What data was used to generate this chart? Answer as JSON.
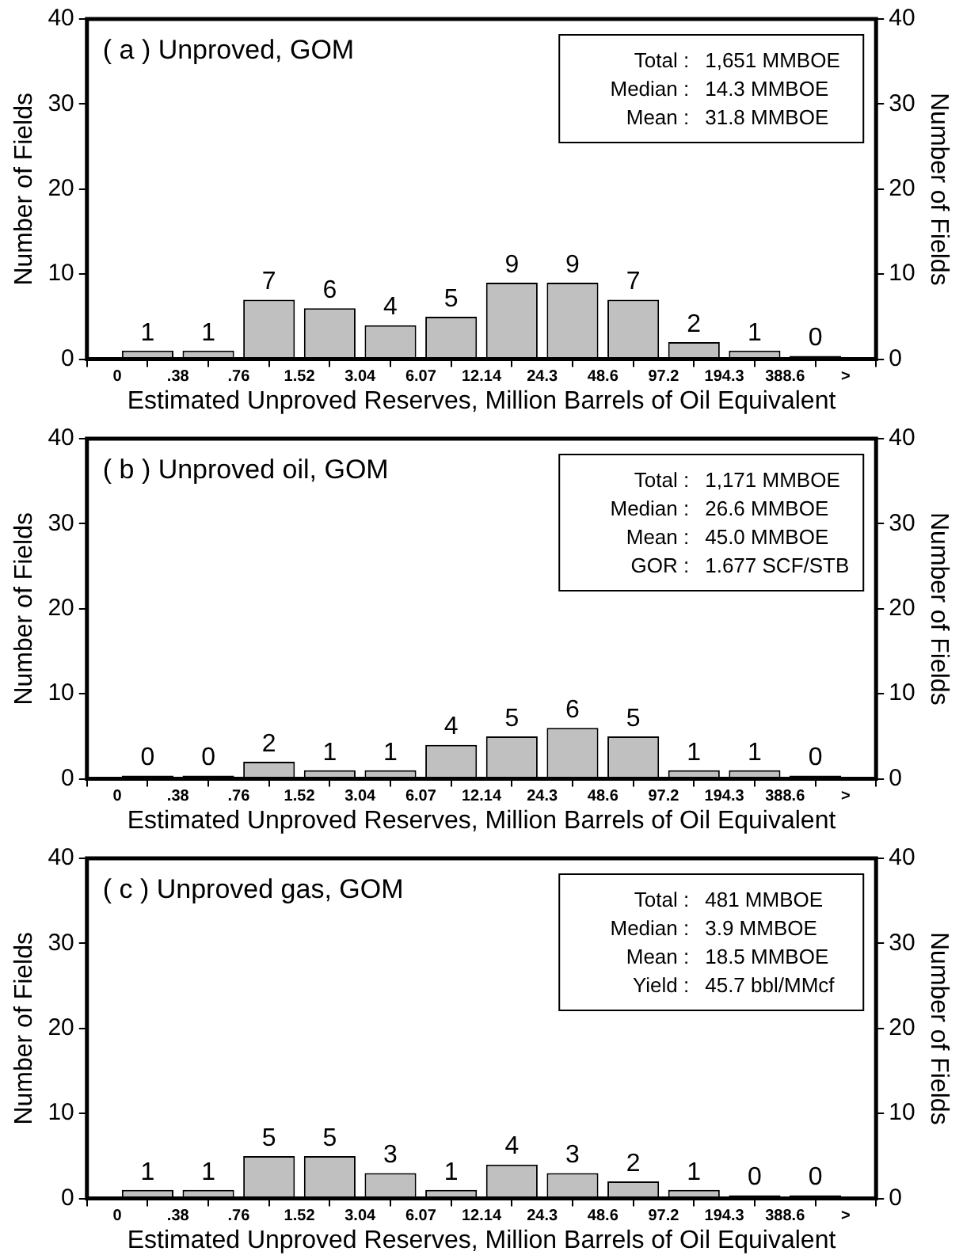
{
  "chart_data": [
    {
      "type": "bar",
      "title": "( a ) Unproved, GOM",
      "xlabel": "Estimated Unproved Reserves, Million Barrels of Oil Equivalent",
      "ylabel": "Number of Fields",
      "y2label": "Number of Fields",
      "categories": [
        "0",
        ".38",
        ".76",
        "1.52",
        "3.04",
        "6.07",
        "12.14",
        "24.3",
        "48.6",
        "97.2",
        "194.3",
        "388.6",
        ">"
      ],
      "values": [
        1,
        1,
        7,
        6,
        4,
        5,
        9,
        9,
        7,
        2,
        1,
        0,
        null
      ],
      "color": "#c0c0c0",
      "ylim": [
        0,
        40
      ],
      "yticks": [
        0,
        10,
        20,
        30,
        40
      ],
      "y2lim": [
        0,
        40
      ],
      "y2ticks": [
        0,
        10,
        20,
        30,
        40
      ],
      "data_labels": true,
      "annotations": [
        "Total : 1,651 MMBOE",
        "Median : 14.3 MMBOE",
        "Mean : 31.8 MMBOE"
      ]
    },
    {
      "type": "bar",
      "title": "( b ) Unproved oil, GOM",
      "xlabel": "Estimated Unproved Reserves, Million Barrels of Oil Equivalent",
      "ylabel": "Number of Fields",
      "y2label": "Number of Fields",
      "categories": [
        "0",
        ".38",
        ".76",
        "1.52",
        "3.04",
        "6.07",
        "12.14",
        "24.3",
        "48.6",
        "97.2",
        "194.3",
        "388.6",
        ">"
      ],
      "values": [
        0,
        0,
        2,
        1,
        1,
        4,
        5,
        6,
        5,
        1,
        1,
        0,
        null
      ],
      "color": "#c0c0c0",
      "ylim": [
        0,
        40
      ],
      "yticks": [
        0,
        10,
        20,
        30,
        40
      ],
      "y2lim": [
        0,
        40
      ],
      "y2ticks": [
        0,
        10,
        20,
        30,
        40
      ],
      "data_labels": true,
      "annotations": [
        "Total : 1,171 MMBOE",
        "Median : 26.6 MMBOE",
        "Mean : 45.0 MMBOE",
        "GOR : 1.677 SCF/STB"
      ]
    },
    {
      "type": "bar",
      "title": "( c ) Unproved gas, GOM",
      "xlabel": "Estimated Unproved Reserves, Million Barrels of Oil Equivalent",
      "ylabel": "Number of Fields",
      "y2label": "Number of Fields",
      "categories": [
        "0",
        ".38",
        ".76",
        "1.52",
        "3.04",
        "6.07",
        "12.14",
        "24.3",
        "48.6",
        "97.2",
        "194.3",
        "388.6",
        ">"
      ],
      "values": [
        1,
        1,
        5,
        5,
        3,
        1,
        4,
        3,
        2,
        1,
        0,
        0,
        null
      ],
      "color": "#c0c0c0",
      "ylim": [
        0,
        40
      ],
      "yticks": [
        0,
        10,
        20,
        30,
        40
      ],
      "y2lim": [
        0,
        40
      ],
      "y2ticks": [
        0,
        10,
        20,
        30,
        40
      ],
      "data_labels": true,
      "annotations": [
        "Total : 481 MMBOE",
        "Median : 3.9 MMBOE",
        "Mean : 18.5 MMBOE",
        "Yield : 45.7 bbl/MMcf"
      ]
    }
  ]
}
